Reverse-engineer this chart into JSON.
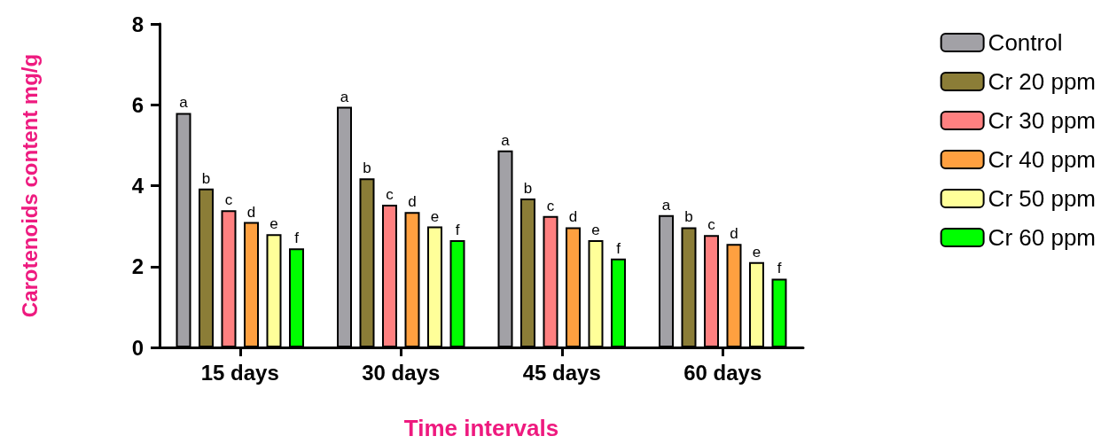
{
  "chart_data": {
    "type": "bar",
    "xlabel": "Time intervals",
    "ylabel": "Carotenoids content mg/g",
    "categories": [
      "15 days",
      "30 days",
      "45 days",
      "60 days"
    ],
    "series": [
      {
        "name": "Control",
        "color": "#a2a1a6",
        "values": [
          5.8,
          5.95,
          4.87,
          3.27
        ],
        "value_labels": [
          "a",
          "a",
          "a",
          "a"
        ]
      },
      {
        "name": "Cr 20 ppm",
        "color": "#8b7d37",
        "values": [
          3.93,
          4.18,
          3.68,
          2.97
        ],
        "value_labels": [
          "b",
          "b",
          "b",
          "b"
        ]
      },
      {
        "name": "Cr 30 ppm",
        "color": "#ff8080",
        "values": [
          3.39,
          3.53,
          3.25,
          2.78
        ],
        "value_labels": [
          "c",
          "c",
          "c",
          "c"
        ]
      },
      {
        "name": "Cr 40 ppm",
        "color": "#ffa040",
        "values": [
          3.1,
          3.35,
          2.97,
          2.56
        ],
        "value_labels": [
          "d",
          "d",
          "d",
          "d"
        ]
      },
      {
        "name": "Cr 50 ppm",
        "color": "#ffff99",
        "values": [
          2.8,
          2.99,
          2.65,
          2.11
        ],
        "value_labels": [
          "e",
          "e",
          "e",
          "e"
        ]
      },
      {
        "name": "Cr 60 ppm",
        "color": "#00ff00",
        "values": [
          2.45,
          2.65,
          2.2,
          1.7
        ],
        "value_labels": [
          "f",
          "f",
          "f",
          "f"
        ]
      }
    ],
    "ylim": [
      0,
      8
    ],
    "yticks": [
      0,
      2,
      4,
      6,
      8
    ],
    "grid": false,
    "legend": "right"
  }
}
